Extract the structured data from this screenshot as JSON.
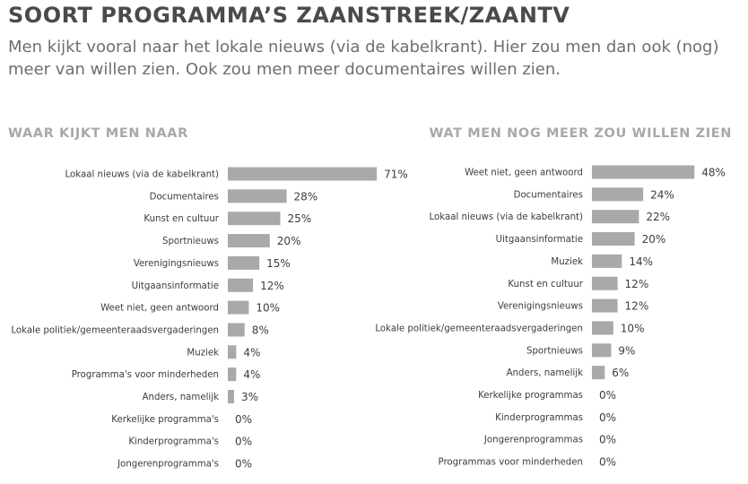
{
  "title": "SOORT PROGRAMMA’S ZAANSTREEK/ZAANTV",
  "subtitle": "Men kijkt vooral naar het lokale nieuws (via de kabelkrant). Hier zou men dan ook (nog) meer van willen zien. Ook zou men meer documentaires willen zien.",
  "colors": {
    "bar": "#a9a9a9",
    "title": "#4a4a4a",
    "panel_title": "#a8a8a8"
  },
  "chart_data": [
    {
      "type": "bar",
      "orientation": "horizontal",
      "title": "WAAR KIJKT MEN NAAR",
      "unit": "%",
      "categories": [
        "Lokaal nieuws (via de kabelkrant)",
        "Documentaires",
        "Kunst en cultuur",
        "Sportnieuws",
        "Verenigingsnieuws",
        "Uitgaansinformatie",
        "Weet niet, geen antwoord",
        "Lokale politiek/gemeenteraadsvergaderingen",
        "Muziek",
        "Programma's voor minderheden",
        "Anders, namelijk",
        "Kerkelijke programma's",
        "Kinderprogramma's",
        "Jongerenprogramma's"
      ],
      "values": [
        71,
        28,
        25,
        20,
        15,
        12,
        10,
        8,
        4,
        4,
        3,
        0,
        0,
        0
      ],
      "value_labels": [
        "71%",
        "28%",
        "25%",
        "20%",
        "15%",
        "12%",
        "10%",
        "8%",
        "4%",
        "4%",
        "3%",
        "0%",
        "0%",
        "0%"
      ]
    },
    {
      "type": "bar",
      "orientation": "horizontal",
      "title": "WAT MEN NOG MEER ZOU WILLEN ZIEN",
      "unit": "%",
      "categories": [
        "Weet niet, geen antwoord",
        "Documentaires",
        "Lokaal nieuws (via de kabelkrant)",
        "Uitgaansinformatie",
        "Muziek",
        "Kunst en cultuur",
        "Verenigingsnieuws",
        "Lokale politiek/gemeenteraadsvergaderingen",
        "Sportnieuws",
        "Anders, namelijk",
        "Kerkelijke programmas",
        "Kinderprogrammas",
        "Jongerenprogrammas",
        "Programmas voor minderheden"
      ],
      "values": [
        48,
        24,
        22,
        20,
        14,
        12,
        12,
        10,
        9,
        6,
        0,
        0,
        0,
        0
      ],
      "value_labels": [
        "48%",
        "24%",
        "22%",
        "20%",
        "14%",
        "12%",
        "12%",
        "10%",
        "9%",
        "6%",
        "0%",
        "0%",
        "0%",
        "0%"
      ]
    }
  ]
}
